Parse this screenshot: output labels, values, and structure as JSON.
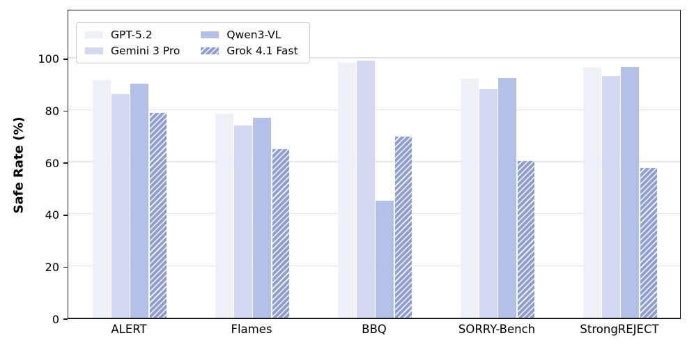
{
  "chart_data": {
    "type": "bar",
    "title": "",
    "xlabel": "",
    "ylabel": "Safe Rate (%)",
    "ylim": [
      0,
      119
    ],
    "yticks": [
      0,
      20,
      40,
      60,
      80,
      100
    ],
    "grid": "horizontal",
    "legend_position": "upper left",
    "legend_columns": 2,
    "categories": [
      "ALERT",
      "Flames",
      "BBQ",
      "SORRY-Bench",
      "StrongREJECT"
    ],
    "series": [
      {
        "name": "GPT-5.2",
        "color": "#ECF0F9",
        "hatch": false,
        "values": [
          91.5,
          78.5,
          98.0,
          92.0,
          96.3
        ]
      },
      {
        "name": "Gemini 3 Pro",
        "color": "#D4D9F1",
        "hatch": false,
        "values": [
          86.0,
          74.0,
          99.0,
          88.0,
          93.0
        ]
      },
      {
        "name": "Qwen3-VL",
        "color": "#B5C0E6",
        "hatch": false,
        "values": [
          90.0,
          77.0,
          45.0,
          92.3,
          96.5
        ]
      },
      {
        "name": "Grok 4.1 Fast",
        "color": "#8E9ED6",
        "hatch": true,
        "values": [
          79.0,
          65.0,
          70.0,
          60.5,
          58.0
        ]
      }
    ],
    "hatch_style": "diagonal-forward-white"
  }
}
